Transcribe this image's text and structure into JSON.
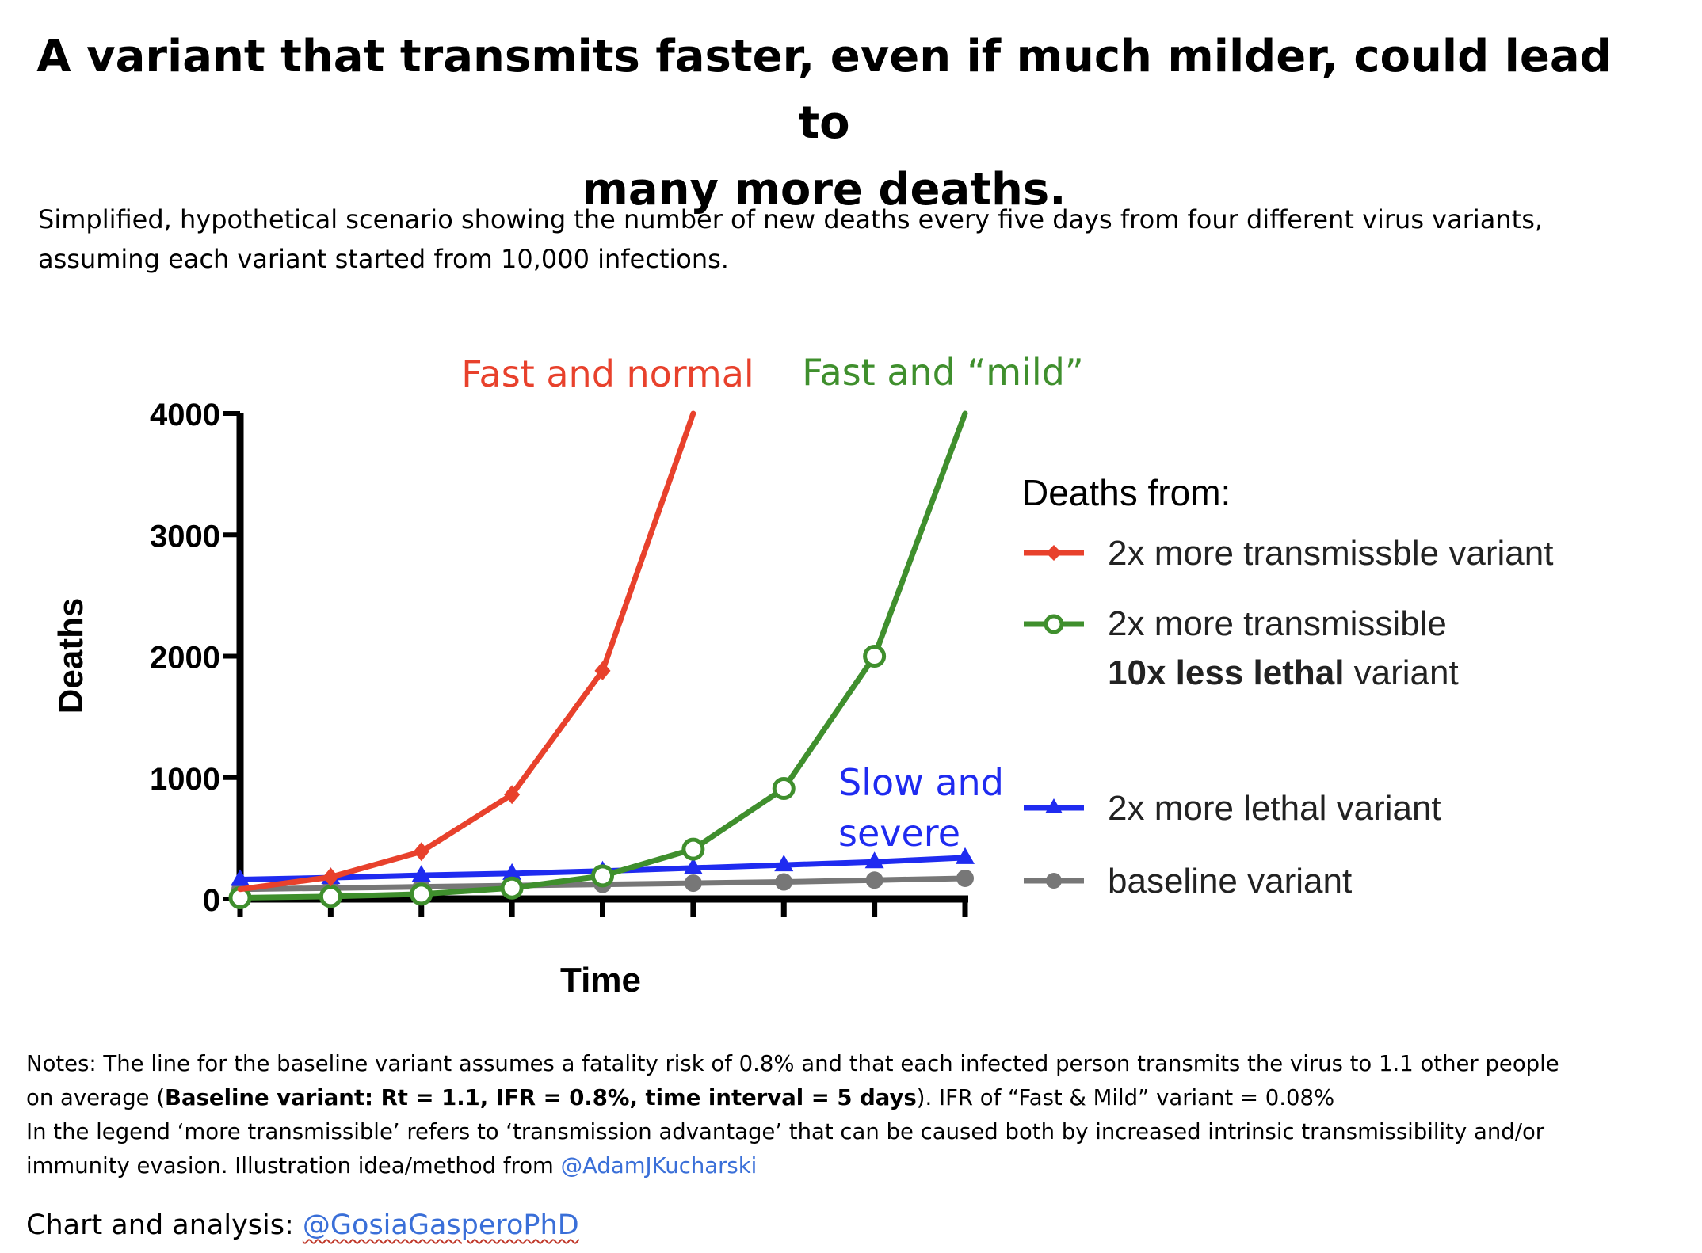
{
  "header": {
    "title_line1": "A variant that transmits faster, even if much milder, could lead to",
    "title_line2": "many more deaths.",
    "subtitle_line1": "Simplified, hypothetical scenario showing the number of new deaths every five days from four different virus variants,",
    "subtitle_line2": "assuming each variant started from 10,000 infections."
  },
  "chart_data": {
    "type": "line",
    "ylabel": "Deaths",
    "xlabel": "Time",
    "ylim": [
      0,
      4000
    ],
    "yticks": [
      "0",
      "1000",
      "2000",
      "3000",
      "4000"
    ],
    "x_points": 9,
    "legend_title": "Deaths from:",
    "legend_placement": "right",
    "grid": false,
    "series": [
      {
        "key": "fast_normal",
        "color": "#e8412c",
        "marker": "diamond",
        "values": [
          80,
          180,
          390,
          860,
          1880,
          4000
        ],
        "legend": [
          "2x more transmissble variant"
        ],
        "annotation": "Fast and normal"
      },
      {
        "key": "fast_mild",
        "color": "#3f8f2d",
        "marker": "circle",
        "values": [
          10,
          20,
          40,
          90,
          190,
          410,
          910,
          2000,
          4000
        ],
        "legend_line1": "2x more transmissible",
        "legend_line2_bold": "10x less lethal",
        "legend_line2_rest": " variant",
        "annotation": "Fast and “mild”"
      },
      {
        "key": "slow_severe",
        "color": "#1f2bf0",
        "marker": "triangle",
        "values": [
          160,
          175,
          195,
          210,
          230,
          255,
          280,
          305,
          340
        ],
        "legend": [
          "2x more lethal variant"
        ],
        "annotation_line1": "Slow and",
        "annotation_line2": "severe"
      },
      {
        "key": "baseline",
        "color": "#777777",
        "marker": "circle-filled",
        "values": [
          80,
          90,
          100,
          110,
          120,
          130,
          140,
          155,
          170
        ],
        "legend": [
          "baseline variant"
        ]
      }
    ]
  },
  "notes": {
    "line1": "Notes: The line for the baseline variant assumes a fatality risk of 0.8% and that each infected person transmits the virus to 1.1 other people",
    "line2_pre": "on average (",
    "line2_bold": "Baseline variant: Rt = 1.1, IFR = 0.8%, time interval = 5 days",
    "line2_post": "). IFR of “Fast & Mild” variant = 0.08%",
    "line3": "In the legend ‘more transmissible’ refers to ‘transmission advantage’ that can be caused both by increased intrinsic transmissibility and/or",
    "line4_pre": "immunity evasion. Illustration idea/method from ",
    "line4_link": "@AdamJKucharski"
  },
  "credit": {
    "label": "Chart and analysis: ",
    "handle": "@GosiaGasperoPhD"
  }
}
